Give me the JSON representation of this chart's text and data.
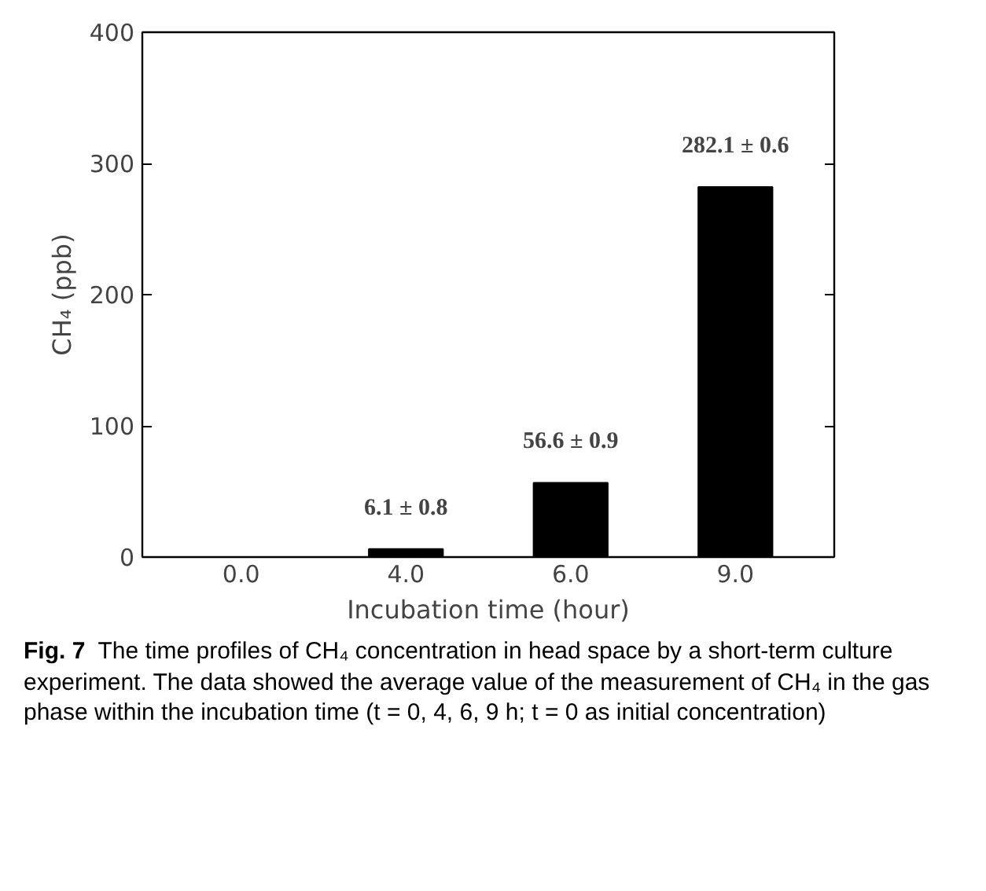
{
  "chart_data": {
    "type": "bar",
    "xlabel": "Incubation time (hour)",
    "ylabel": "CH₄ (ppb)",
    "categories": [
      "0.0",
      "4.0",
      "6.0",
      "9.0"
    ],
    "values": [
      0,
      6.1,
      56.6,
      282.1
    ],
    "value_labels": [
      null,
      "6.1 ± 0.8",
      "56.6 ± 0.9",
      "282.1 ± 0.6"
    ],
    "color": "#000000",
    "ylim": [
      0,
      400
    ],
    "yticks": [
      0,
      100,
      200,
      300,
      400
    ],
    "grid": false,
    "annotations": [
      "Fig. 7",
      "The time profiles of CH₄ concentration in head space by a short-term culture experiment. The data showed the average value of the measurement of CH₄ in the gas phase within the incubation time (t = 0, 4, 6, 9 h; t = 0 as initial concentration)"
    ]
  }
}
